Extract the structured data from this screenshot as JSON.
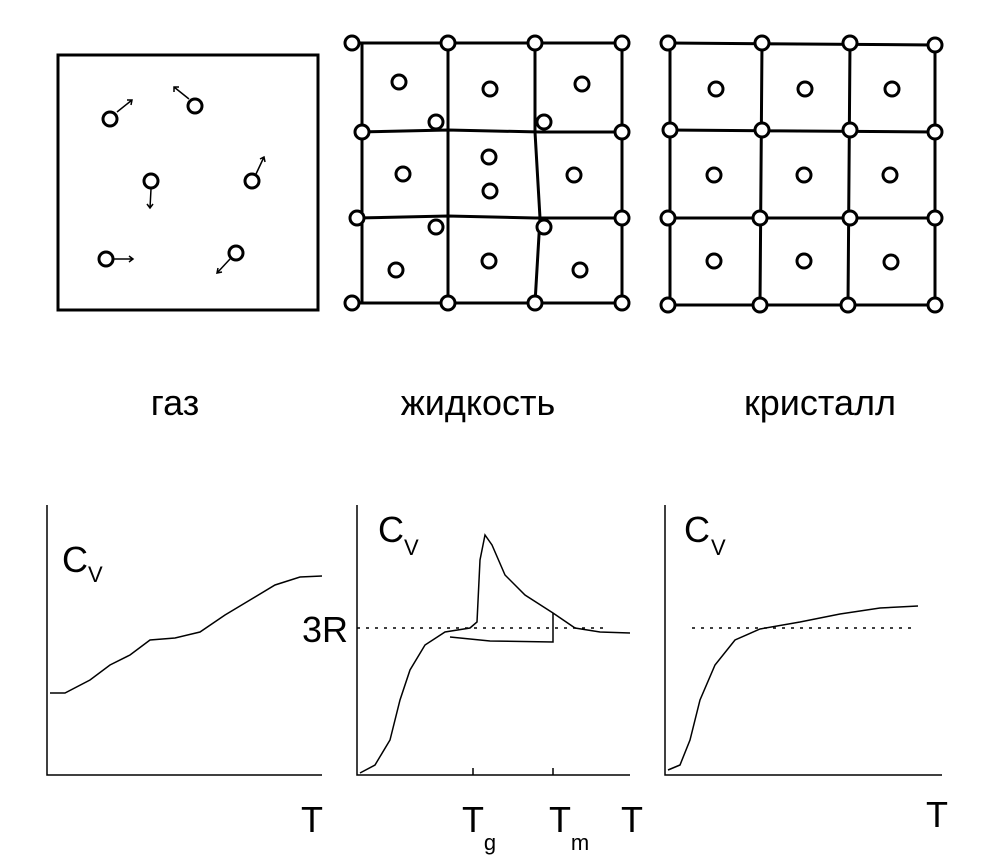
{
  "panels": [
    {
      "label": "газ",
      "y_label": "C",
      "y_sub": "V",
      "x_label": "T"
    },
    {
      "label": "жидкость",
      "y_label": "C",
      "y_sub": "V",
      "x_label": "T",
      "level_label": "3R",
      "marks": [
        {
          "main": "T",
          "sub": "g"
        },
        {
          "main": "T",
          "sub": "m"
        }
      ]
    },
    {
      "label": "кристалл",
      "y_label": "C",
      "y_sub": "V",
      "x_label": "T"
    }
  ]
}
